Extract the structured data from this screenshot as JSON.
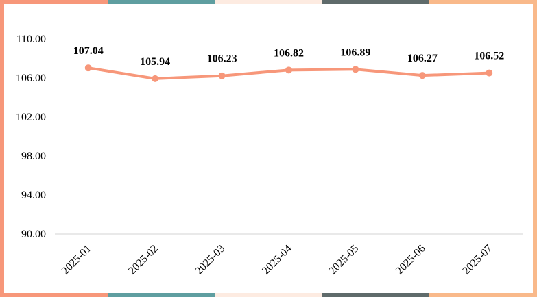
{
  "colors": {
    "frame_segments": [
      "#f7977a",
      "#5f9ea0",
      "#fdebe1",
      "#5f6b6b",
      "#f9b98a"
    ],
    "series": "#f7977a",
    "axis_line": "#d3d3d3",
    "text": "#000000"
  },
  "chart_data": {
    "type": "line",
    "title": "",
    "xlabel": "",
    "ylabel": "",
    "categories": [
      "2025-01",
      "2025-02",
      "2025-03",
      "2025-04",
      "2025-05",
      "2025-06",
      "2025-07"
    ],
    "series": [
      {
        "values": [
          107.04,
          105.94,
          106.23,
          106.82,
          106.89,
          106.27,
          106.52
        ],
        "data_labels": [
          "107.04",
          "105.94",
          "106.23",
          "106.82",
          "106.89",
          "106.27",
          "106.52"
        ]
      }
    ],
    "ylim": [
      90,
      110
    ],
    "y_ticks": [
      90,
      94,
      98,
      102,
      106,
      110
    ],
    "y_tick_labels": [
      "90.00",
      "94.00",
      "98.00",
      "102.00",
      "106.00",
      "110.00"
    ],
    "grid": false,
    "legend": "none"
  }
}
